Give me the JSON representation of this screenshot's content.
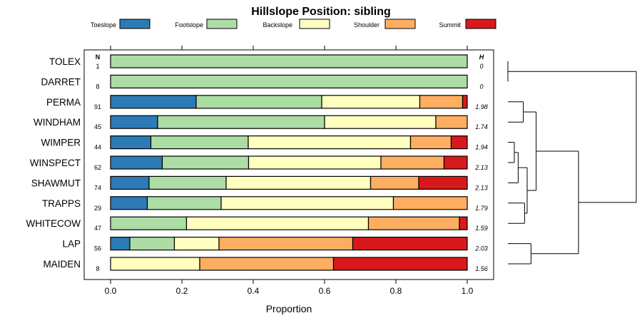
{
  "chart_data": {
    "type": "bar",
    "subtype": "stacked-horizontal-proportion",
    "title": "Hillslope Position: sibling",
    "xlabel": "Proportion",
    "ylabel": "",
    "xlim": [
      0,
      1
    ],
    "x_ticks": [
      "0.0",
      "0.2",
      "0.4",
      "0.6",
      "0.8",
      "1.0"
    ],
    "n_header": "N",
    "h_header": "H",
    "legend_position": "top",
    "series": [
      {
        "name": "Toeslope",
        "color": "#2C7BB6"
      },
      {
        "name": "Footslope",
        "color": "#ABDDA4"
      },
      {
        "name": "Backslope",
        "color": "#FFFFBF"
      },
      {
        "name": "Shoulder",
        "color": "#FDAE61"
      },
      {
        "name": "Summit",
        "color": "#D7191C"
      }
    ],
    "categories": [
      "TOLEX",
      "DARRET",
      "PERMA",
      "WINDHAM",
      "WIMPER",
      "WINSPECT",
      "SHAWMUT",
      "TRAPPS",
      "WHITECOW",
      "LAP",
      "MAIDEN"
    ],
    "rows": [
      {
        "label": "TOLEX",
        "n": "1",
        "h": "0",
        "values": [
          0,
          1.0,
          0,
          0,
          0
        ]
      },
      {
        "label": "DARRET",
        "n": "8",
        "h": "0",
        "values": [
          0,
          1.0,
          0,
          0,
          0
        ]
      },
      {
        "label": "PERMA",
        "n": "91",
        "h": "1.98",
        "values": [
          0.24,
          0.352,
          0.275,
          0.12,
          0.013
        ]
      },
      {
        "label": "WINDHAM",
        "n": "45",
        "h": "1.74",
        "values": [
          0.132,
          0.468,
          0.312,
          0.088,
          0
        ]
      },
      {
        "label": "WIMPER",
        "n": "44",
        "h": "1.94",
        "values": [
          0.113,
          0.273,
          0.455,
          0.114,
          0.045
        ]
      },
      {
        "label": "WINSPECT",
        "n": "62",
        "h": "2.13",
        "values": [
          0.145,
          0.242,
          0.371,
          0.177,
          0.065
        ]
      },
      {
        "label": "SHAWMUT",
        "n": "74",
        "h": "2.13",
        "values": [
          0.108,
          0.216,
          0.405,
          0.135,
          0.136
        ]
      },
      {
        "label": "TRAPPS",
        "n": "29",
        "h": "1.79",
        "values": [
          0.103,
          0.207,
          0.483,
          0.207,
          0
        ]
      },
      {
        "label": "WHITECOW",
        "n": "47",
        "h": "1.59",
        "values": [
          0,
          0.213,
          0.51,
          0.255,
          0.022
        ]
      },
      {
        "label": "LAP",
        "n": "56",
        "h": "2.03",
        "values": [
          0.054,
          0.125,
          0.125,
          0.375,
          0.321
        ]
      },
      {
        "label": "MAIDEN",
        "n": "8",
        "h": "1.56",
        "values": [
          0,
          0,
          0.25,
          0.375,
          0.375
        ]
      }
    ],
    "dendrogram": {
      "merges": [
        {
          "a": 0,
          "b": 1,
          "height": 0.0
        },
        {
          "a": 4,
          "b": 5,
          "height": 0.05
        },
        {
          "a": 6,
          "b": "m1",
          "height": 0.08
        },
        {
          "a": 2,
          "b": 3,
          "height": 0.12
        },
        {
          "a": 7,
          "b": 8,
          "height": 0.13
        },
        {
          "a": "m2",
          "b": "m4",
          "height": 0.15
        },
        {
          "a": "m3",
          "b": "m5",
          "height": 0.22
        },
        {
          "a": 9,
          "b": 10,
          "height": 0.18
        },
        {
          "a": "m6",
          "b": "m7",
          "height": 0.55
        },
        {
          "a": "m0",
          "b": "m8",
          "height": 1.0
        }
      ]
    }
  }
}
